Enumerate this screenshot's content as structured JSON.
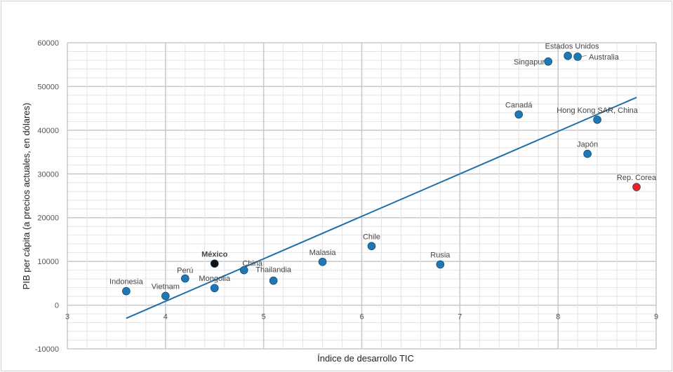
{
  "chart_data": {
    "type": "scatter",
    "title": "",
    "xlabel": "Índice de desarrollo TIC",
    "ylabel": "PIB per cápita (a precios actuales, en dólares)",
    "xlim": [
      3,
      9
    ],
    "ylim": [
      -10000,
      60000
    ],
    "xticks": [
      "3",
      "4",
      "5",
      "6",
      "7",
      "8",
      "9"
    ],
    "yticks": [
      "-10000",
      "0",
      "10000",
      "20000",
      "30000",
      "40000",
      "50000",
      "60000"
    ],
    "grid": true,
    "points": [
      {
        "label": "Indonesia",
        "x": 3.6,
        "y": 3200,
        "color": "#1f77b4"
      },
      {
        "label": "Vietnam",
        "x": 4.0,
        "y": 2100,
        "color": "#1f77b4"
      },
      {
        "label": "Perú",
        "x": 4.2,
        "y": 6100,
        "color": "#1f77b4"
      },
      {
        "label": "México",
        "x": 4.5,
        "y": 9500,
        "color": "#111111"
      },
      {
        "label": "Mongolia",
        "x": 4.5,
        "y": 3900,
        "color": "#1f77b4"
      },
      {
        "label": "China",
        "x": 4.8,
        "y": 8000,
        "color": "#1f77b4"
      },
      {
        "label": "Thailandia",
        "x": 5.1,
        "y": 5600,
        "color": "#1f77b4"
      },
      {
        "label": "Malasia",
        "x": 5.6,
        "y": 9900,
        "color": "#1f77b4"
      },
      {
        "label": "Chile",
        "x": 6.1,
        "y": 13500,
        "color": "#1f77b4"
      },
      {
        "label": "Rusia",
        "x": 6.8,
        "y": 9300,
        "color": "#1f77b4"
      },
      {
        "label": "Canadá",
        "x": 7.6,
        "y": 43600,
        "color": "#1f77b4"
      },
      {
        "label": "Singapur",
        "x": 7.9,
        "y": 55700,
        "color": "#1f77b4"
      },
      {
        "label": "Estados Unidos",
        "x": 8.1,
        "y": 57000,
        "color": "#1f77b4"
      },
      {
        "label": "Australia",
        "x": 8.2,
        "y": 56800,
        "color": "#1f77b4"
      },
      {
        "label": "Hong Kong SAR, China",
        "x": 8.4,
        "y": 42400,
        "color": "#1f77b4"
      },
      {
        "label": "Japón",
        "x": 8.3,
        "y": 34600,
        "color": "#1f77b4"
      },
      {
        "label": "Rep. Corea",
        "x": 8.8,
        "y": 27000,
        "color": "#e8222a"
      }
    ],
    "trendline": {
      "x": [
        3.6,
        8.8
      ],
      "y": [
        -3000,
        47500
      ],
      "color": "#1f6fa8"
    }
  }
}
